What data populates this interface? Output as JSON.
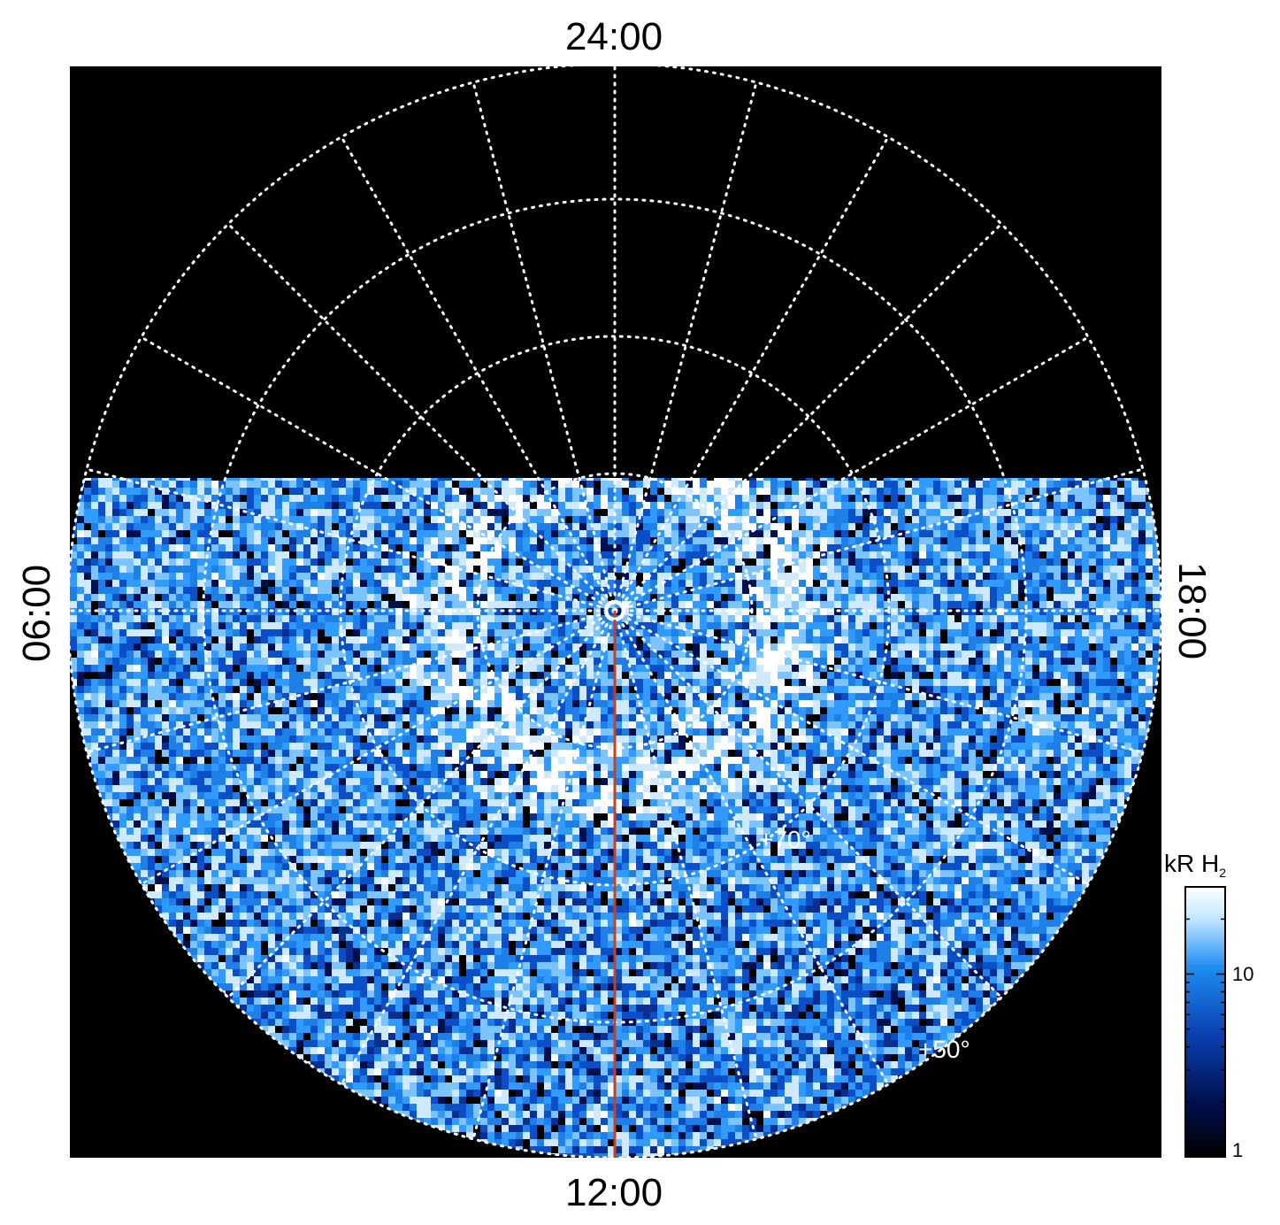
{
  "figure": {
    "local_time_labels": {
      "top": "24:00",
      "bottom": "12:00",
      "left": "06:00",
      "right": "18:00"
    },
    "latitude_labels": {
      "inner": "+70°",
      "outer": "+50°"
    },
    "colorbar": {
      "title_main": "kR H",
      "title_sub": "2",
      "scale": "log",
      "ticks": [
        "10",
        "1"
      ],
      "colors": [
        "#000000",
        "#00104f",
        "#0a3fb0",
        "#1e8cf0",
        "#bfe6ff",
        "#ffffff"
      ]
    },
    "meridian_line_color": "#c8401c",
    "background_color": "#000000",
    "grid_color": "#ffffff"
  }
}
